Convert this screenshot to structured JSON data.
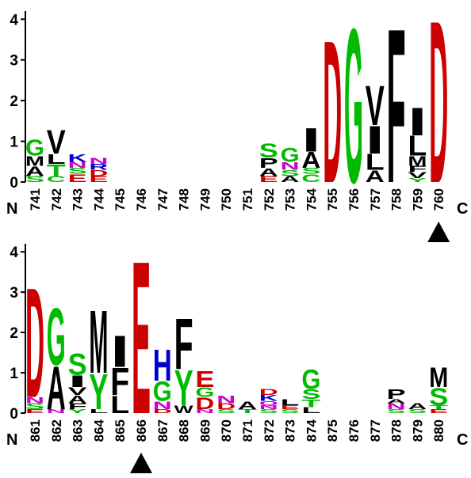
{
  "chart_data": [
    {
      "type": "logo",
      "start_label": "N",
      "end_label": "C",
      "highlight": "760",
      "ylim": [
        0,
        4.2
      ],
      "yticks": [
        0,
        1,
        2,
        3,
        4
      ],
      "letter_colors": {
        "D": "#cc0000",
        "E": "#cc0000",
        "G": "#00bb00",
        "S": "#00bb00",
        "T": "#00bb00",
        "Y": "#00bb00",
        "C": "#00bb00",
        "H": "#0000cc",
        "K": "#0000cc",
        "R": "#0000cc",
        "N": "#cc00cc",
        "Q": "#cc00cc",
        "other": "#000000"
      },
      "categories": [
        "741",
        "742",
        "743",
        "744",
        "745",
        "746",
        "747",
        "748",
        "749",
        "750",
        "751",
        "752",
        "753",
        "754",
        "755",
        "756",
        "757",
        "758",
        "759",
        "760"
      ],
      "stacks": [
        [
          {
            "letter": "S",
            "height": 0.15
          },
          {
            "letter": "A",
            "height": 0.25
          },
          {
            "letter": "M",
            "height": 0.25
          },
          {
            "letter": "G",
            "height": 0.4
          }
        ],
        [
          {
            "letter": "C",
            "height": 0.15
          },
          {
            "letter": "T",
            "height": 0.3
          },
          {
            "letter": "L",
            "height": 0.25
          },
          {
            "letter": "V",
            "height": 0.6
          }
        ],
        [
          {
            "letter": "E",
            "height": 0.2
          },
          {
            "letter": "S",
            "height": 0.15
          },
          {
            "letter": "N",
            "height": 0.15
          },
          {
            "letter": "K",
            "height": 0.2
          }
        ],
        [
          {
            "letter": "E",
            "height": 0.15
          },
          {
            "letter": "D",
            "height": 0.15
          },
          {
            "letter": "R",
            "height": 0.15
          },
          {
            "letter": "N",
            "height": 0.15
          }
        ],
        [],
        [],
        [],
        [],
        [],
        [],
        [],
        [
          {
            "letter": "E",
            "height": 0.15
          },
          {
            "letter": "A",
            "height": 0.2
          },
          {
            "letter": "P",
            "height": 0.25
          },
          {
            "letter": "S",
            "height": 0.35
          }
        ],
        [
          {
            "letter": "A",
            "height": 0.15
          },
          {
            "letter": "S",
            "height": 0.15
          },
          {
            "letter": "N",
            "height": 0.2
          },
          {
            "letter": "G",
            "height": 0.35
          }
        ],
        [
          {
            "letter": "C",
            "height": 0.2
          },
          {
            "letter": "S",
            "height": 0.15
          },
          {
            "letter": "A",
            "height": 0.4
          },
          {
            "letter": "I",
            "height": 0.6
          }
        ],
        [
          {
            "letter": "D",
            "height": 3.6
          }
        ],
        [
          {
            "letter": "G",
            "height": 3.9
          }
        ],
        [
          {
            "letter": "A",
            "height": 0.3
          },
          {
            "letter": "L",
            "height": 0.4
          },
          {
            "letter": "I",
            "height": 0.7
          },
          {
            "letter": "V",
            "height": 1.0
          }
        ],
        [
          {
            "letter": "F",
            "height": 3.9
          }
        ],
        [
          {
            "letter": "Y",
            "height": 0.1
          },
          {
            "letter": "V",
            "height": 0.15
          },
          {
            "letter": "F",
            "height": 0.15
          },
          {
            "letter": "M",
            "height": 0.25
          },
          {
            "letter": "L",
            "height": 0.5
          },
          {
            "letter": "I",
            "height": 0.7
          }
        ],
        [
          {
            "letter": "D",
            "height": 4.1
          }
        ]
      ]
    },
    {
      "type": "logo",
      "start_label": "N",
      "end_label": "C",
      "highlight": "866",
      "ylim": [
        0,
        4.2
      ],
      "yticks": [
        0,
        1,
        2,
        3,
        4
      ],
      "letter_colors": {
        "D": "#cc0000",
        "E": "#cc0000",
        "G": "#00bb00",
        "S": "#00bb00",
        "T": "#00bb00",
        "Y": "#00bb00",
        "C": "#00bb00",
        "H": "#0000cc",
        "K": "#0000cc",
        "R": "#0000cc",
        "N": "#cc00cc",
        "Q": "#cc00cc",
        "other": "#000000"
      },
      "categories": [
        "861",
        "862",
        "863",
        "864",
        "865",
        "866",
        "867",
        "868",
        "869",
        "870",
        "871",
        "872",
        "873",
        "874",
        "875",
        "876",
        "877",
        "878",
        "879",
        "880"
      ],
      "stacks": [
        [
          {
            "letter": "E",
            "height": 0.1
          },
          {
            "letter": "S",
            "height": 0.15
          },
          {
            "letter": "N",
            "height": 0.15
          },
          {
            "letter": "D",
            "height": 2.8
          }
        ],
        [
          {
            "letter": "N",
            "height": 0.1
          },
          {
            "letter": "A",
            "height": 1.1
          },
          {
            "letter": "G",
            "height": 1.45
          }
        ],
        [
          {
            "letter": "Y",
            "height": 0.1
          },
          {
            "letter": "F",
            "height": 0.15
          },
          {
            "letter": "A",
            "height": 0.2
          },
          {
            "letter": "V",
            "height": 0.2
          },
          {
            "letter": "I",
            "height": 0.3
          },
          {
            "letter": "S",
            "height": 0.55
          }
        ],
        [
          {
            "letter": "L",
            "height": 0.1
          },
          {
            "letter": "Y",
            "height": 0.9
          },
          {
            "letter": "M",
            "height": 1.6
          }
        ],
        [
          {
            "letter": "L",
            "height": 0.45
          },
          {
            "letter": "F",
            "height": 0.7
          },
          {
            "letter": "I",
            "height": 0.8
          }
        ],
        [
          {
            "letter": "E",
            "height": 3.9
          }
        ],
        [
          {
            "letter": "D",
            "height": 0.1
          },
          {
            "letter": "N",
            "height": 0.2
          },
          {
            "letter": "G",
            "height": 0.5
          },
          {
            "letter": "H",
            "height": 0.8
          }
        ],
        [
          {
            "letter": "W",
            "height": 0.2
          },
          {
            "letter": "Y",
            "height": 0.9
          },
          {
            "letter": "F",
            "height": 1.3
          }
        ],
        [
          {
            "letter": "N",
            "height": 0.1
          },
          {
            "letter": "D",
            "height": 0.3
          },
          {
            "letter": "G",
            "height": 0.25
          },
          {
            "letter": "E",
            "height": 0.4
          }
        ],
        [
          {
            "letter": "S",
            "height": 0.1
          },
          {
            "letter": "D",
            "height": 0.15
          },
          {
            "letter": "N",
            "height": 0.2
          }
        ],
        [
          {
            "letter": "T",
            "height": 0.1
          },
          {
            "letter": "A",
            "height": 0.2
          }
        ],
        [
          {
            "letter": "S",
            "height": 0.1
          },
          {
            "letter": "N",
            "height": 0.1
          },
          {
            "letter": "Q",
            "height": 0.1
          },
          {
            "letter": "K",
            "height": 0.15
          },
          {
            "letter": "D",
            "height": 0.15
          }
        ],
        [
          {
            "letter": "S",
            "height": 0.1
          },
          {
            "letter": "E",
            "height": 0.1
          },
          {
            "letter": "L",
            "height": 0.15
          }
        ],
        [
          {
            "letter": "L",
            "height": 0.15
          },
          {
            "letter": "T",
            "height": 0.2
          },
          {
            "letter": "S",
            "height": 0.25
          },
          {
            "letter": "G",
            "height": 0.5
          }
        ],
        [],
        [],
        [],
        [
          {
            "letter": "S",
            "height": 0.1
          },
          {
            "letter": "N",
            "height": 0.15
          },
          {
            "letter": "A",
            "height": 0.1
          },
          {
            "letter": "P",
            "height": 0.25
          }
        ],
        [
          {
            "letter": "S",
            "height": 0.1
          },
          {
            "letter": "A",
            "height": 0.15
          }
        ],
        [
          {
            "letter": "E",
            "height": 0.1
          },
          {
            "letter": "T",
            "height": 0.1
          },
          {
            "letter": "S",
            "height": 0.45
          },
          {
            "letter": "M",
            "height": 0.5
          }
        ]
      ]
    }
  ]
}
